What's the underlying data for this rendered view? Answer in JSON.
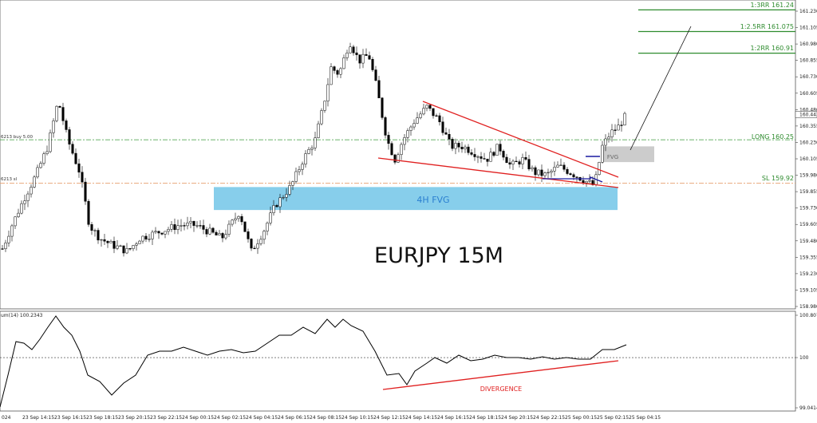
{
  "chart_data": {
    "type": "candlestick",
    "title": "EURJPY 15M",
    "price_ticks": [
      "161.230",
      "161.105",
      "160.980",
      "160.855",
      "160.730",
      "160.605",
      "160.480",
      "160.355",
      "160.230",
      "160.105",
      "159.980",
      "159.855",
      "159.730",
      "159.605",
      "159.480",
      "159.355",
      "159.230",
      "159.105",
      "158.980"
    ],
    "current_price": "160.443",
    "time_labels": [
      "024",
      "23 Sep 14:15",
      "23 Sep 16:15",
      "23 Sep 18:15",
      "23 Sep 20:15",
      "23 Sep 22:15",
      "24 Sep 00:15",
      "24 Sep 02:15",
      "24 Sep 04:15",
      "24 Sep 06:15",
      "24 Sep 08:15",
      "24 Sep 10:15",
      "24 Sep 12:15",
      "24 Sep 14:15",
      "24 Sep 16:15",
      "24 Sep 18:15",
      "24 Sep 20:15",
      "24 Sep 22:15",
      "25 Sep 00:15",
      "25 Sep 02:15",
      "25 Sep 04:15"
    ],
    "levels": [
      {
        "name": "1:3RR 161.24",
        "price": 161.24,
        "color": "#2e8b2e"
      },
      {
        "name": "1:2.5RR 161.075",
        "price": 161.075,
        "color": "#2e8b2e"
      },
      {
        "name": "1:2RR 160.91",
        "price": 160.91,
        "color": "#2e8b2e"
      },
      {
        "name": "LONG 160.25",
        "price": 160.25,
        "color": "#2e8b2e"
      },
      {
        "name": "SL 159.92",
        "price": 159.92,
        "color": "#e8a070"
      }
    ],
    "order_labels": [
      "6213 buy 5.00",
      "6213 sl"
    ],
    "zones": [
      {
        "name": "4H FVG",
        "price_high": 159.89,
        "price_low": 159.715,
        "color": "#87ceeb"
      },
      {
        "name": "FVG",
        "price_high": 160.2,
        "price_low": 160.08,
        "color": "#cccccc"
      }
    ],
    "indicator": {
      "label": "um(14) 100.2343",
      "ticks": [
        "100.8072",
        "100",
        "99.0414"
      ],
      "annotation": "DIVERGENCE"
    },
    "colors": {
      "trendline": "#e02020",
      "level": "#2e8b2e",
      "sl": "#e8a070",
      "fvg": "#87ceeb",
      "annotation": "#e02020"
    }
  }
}
